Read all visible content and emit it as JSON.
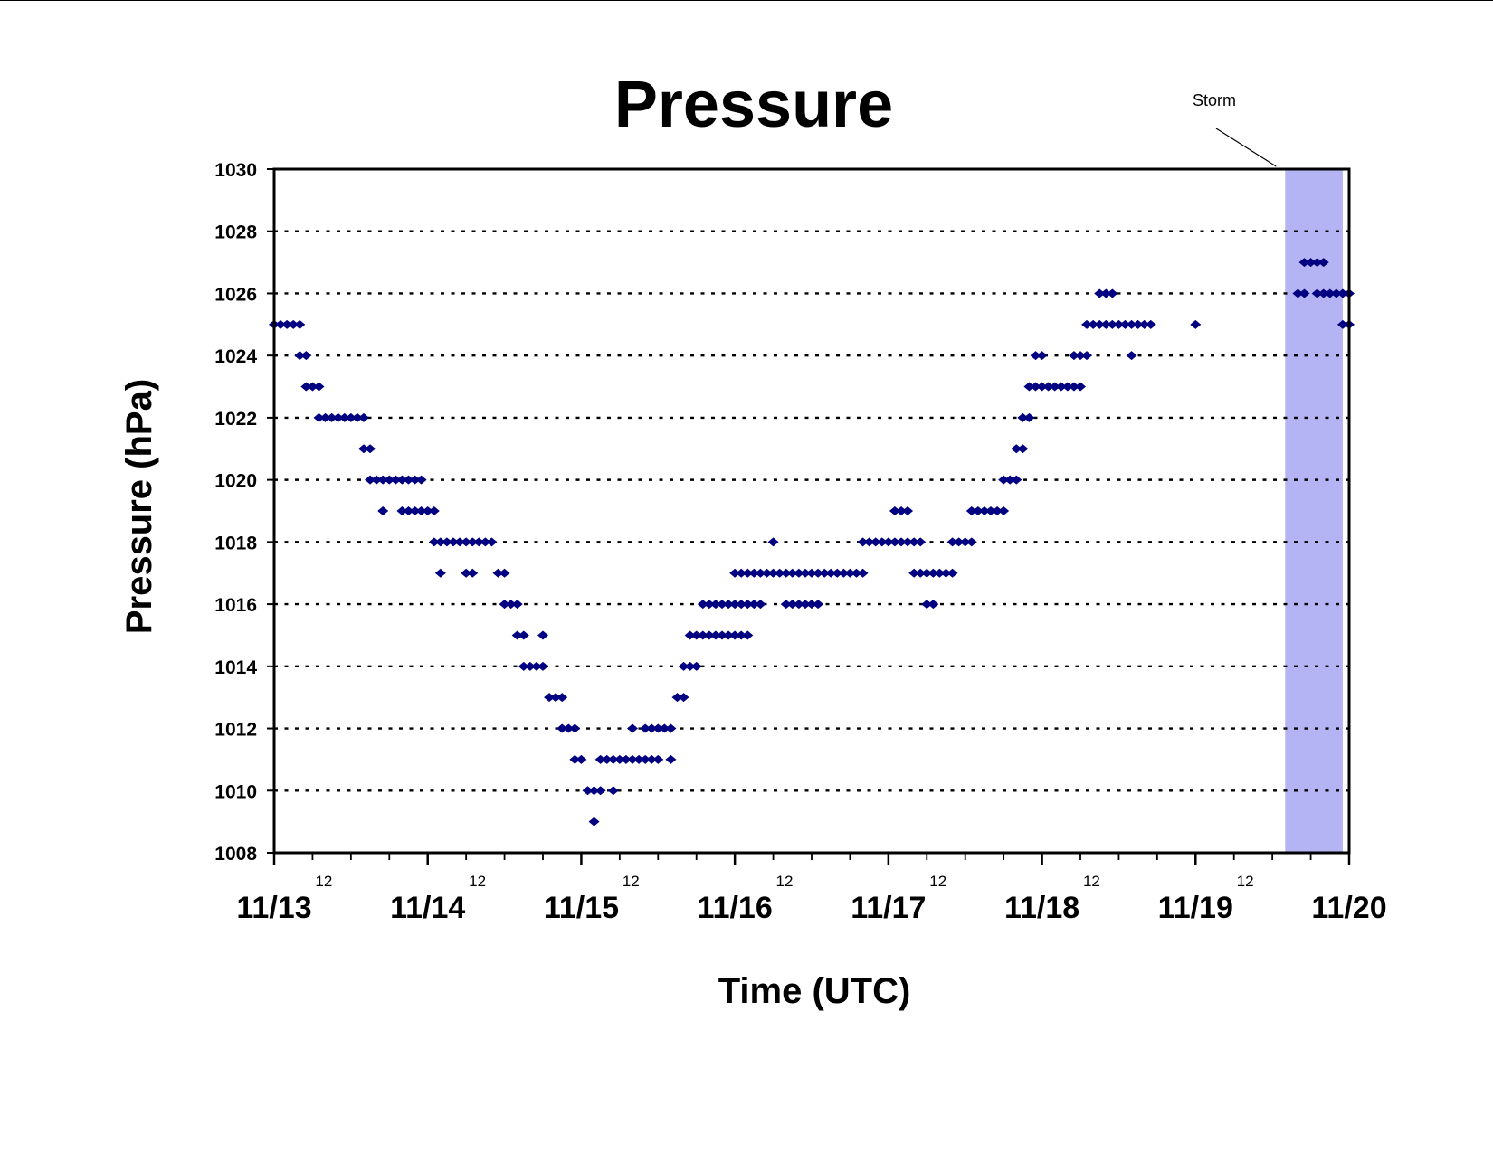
{
  "chart_data": {
    "type": "scatter",
    "title": "Pressure",
    "xlabel": "Time (UTC)",
    "ylabel": "Pressure (hPa)",
    "ylim": [
      1008,
      1030
    ],
    "yticks": [
      "1008",
      "1010",
      "1012",
      "1014",
      "1016",
      "1018",
      "1020",
      "1022",
      "1024",
      "1026",
      "1028",
      "1030"
    ],
    "xlim": [
      "11/13 00:00",
      "11/20 00:00"
    ],
    "x_day_labels": [
      "11/13",
      "11/14",
      "11/15",
      "11/16",
      "11/17",
      "11/18",
      "11/19",
      "11/20"
    ],
    "x_hour_labels": [
      "12",
      "12",
      "12",
      "12",
      "12",
      "12",
      "12"
    ],
    "grid": "horizontal dotted",
    "marker_color": "#000080",
    "annotation": {
      "label": "Storm",
      "color": "#b4b4f4",
      "start": "11/19 14:00",
      "end": "11/19 23:00"
    },
    "series": [
      {
        "points": [
          {
            "x": "11/13 00:00",
            "y": 1025
          },
          {
            "x": "11/13 01:00",
            "y": 1025
          },
          {
            "x": "11/13 02:00",
            "y": 1025
          },
          {
            "x": "11/13 03:00",
            "y": 1025
          },
          {
            "x": "11/13 04:00",
            "y": 1025
          },
          {
            "x": "11/13 04:00",
            "y": 1024
          },
          {
            "x": "11/13 05:00",
            "y": 1024
          },
          {
            "x": "11/13 05:00",
            "y": 1023
          },
          {
            "x": "11/13 06:00",
            "y": 1023
          },
          {
            "x": "11/13 07:00",
            "y": 1023
          },
          {
            "x": "11/13 07:00",
            "y": 1022
          },
          {
            "x": "11/13 08:00",
            "y": 1022
          },
          {
            "x": "11/13 09:00",
            "y": 1022
          },
          {
            "x": "11/13 10:00",
            "y": 1022
          },
          {
            "x": "11/13 11:00",
            "y": 1022
          },
          {
            "x": "11/13 12:00",
            "y": 1022
          },
          {
            "x": "11/13 13:00",
            "y": 1022
          },
          {
            "x": "11/13 14:00",
            "y": 1022
          },
          {
            "x": "11/13 14:00",
            "y": 1021
          },
          {
            "x": "11/13 15:00",
            "y": 1021
          },
          {
            "x": "11/13 15:00",
            "y": 1020
          },
          {
            "x": "11/13 16:00",
            "y": 1020
          },
          {
            "x": "11/13 17:00",
            "y": 1020
          },
          {
            "x": "11/13 18:00",
            "y": 1020
          },
          {
            "x": "11/13 19:00",
            "y": 1020
          },
          {
            "x": "11/13 20:00",
            "y": 1020
          },
          {
            "x": "11/13 21:00",
            "y": 1020
          },
          {
            "x": "11/13 22:00",
            "y": 1020
          },
          {
            "x": "11/13 23:00",
            "y": 1020
          },
          {
            "x": "11/13 17:00",
            "y": 1019
          },
          {
            "x": "11/13 20:00",
            "y": 1019
          },
          {
            "x": "11/13 21:00",
            "y": 1019
          },
          {
            "x": "11/13 22:00",
            "y": 1019
          },
          {
            "x": "11/13 23:00",
            "y": 1019
          },
          {
            "x": "11/14 00:00",
            "y": 1019
          },
          {
            "x": "11/14 01:00",
            "y": 1019
          },
          {
            "x": "11/14 01:00",
            "y": 1018
          },
          {
            "x": "11/14 02:00",
            "y": 1018
          },
          {
            "x": "11/14 03:00",
            "y": 1018
          },
          {
            "x": "11/14 04:00",
            "y": 1018
          },
          {
            "x": "11/14 05:00",
            "y": 1018
          },
          {
            "x": "11/14 06:00",
            "y": 1018
          },
          {
            "x": "11/14 07:00",
            "y": 1018
          },
          {
            "x": "11/14 08:00",
            "y": 1018
          },
          {
            "x": "11/14 09:00",
            "y": 1018
          },
          {
            "x": "11/14 10:00",
            "y": 1018
          },
          {
            "x": "11/14 02:00",
            "y": 1017
          },
          {
            "x": "11/14 06:00",
            "y": 1017
          },
          {
            "x": "11/14 07:00",
            "y": 1017
          },
          {
            "x": "11/14 11:00",
            "y": 1017
          },
          {
            "x": "11/14 12:00",
            "y": 1017
          },
          {
            "x": "11/14 12:00",
            "y": 1016
          },
          {
            "x": "11/14 13:00",
            "y": 1016
          },
          {
            "x": "11/14 14:00",
            "y": 1016
          },
          {
            "x": "11/14 14:00",
            "y": 1015
          },
          {
            "x": "11/14 15:00",
            "y": 1015
          },
          {
            "x": "11/14 18:00",
            "y": 1015
          },
          {
            "x": "11/14 15:00",
            "y": 1014
          },
          {
            "x": "11/14 16:00",
            "y": 1014
          },
          {
            "x": "11/14 17:00",
            "y": 1014
          },
          {
            "x": "11/14 18:00",
            "y": 1014
          },
          {
            "x": "11/14 19:00",
            "y": 1013
          },
          {
            "x": "11/14 20:00",
            "y": 1013
          },
          {
            "x": "11/14 21:00",
            "y": 1013
          },
          {
            "x": "11/14 21:00",
            "y": 1012
          },
          {
            "x": "11/14 22:00",
            "y": 1012
          },
          {
            "x": "11/14 23:00",
            "y": 1012
          },
          {
            "x": "11/14 23:00",
            "y": 1011
          },
          {
            "x": "11/15 00:00",
            "y": 1011
          },
          {
            "x": "11/15 01:00",
            "y": 1010
          },
          {
            "x": "11/15 02:00",
            "y": 1010
          },
          {
            "x": "11/15 03:00",
            "y": 1010
          },
          {
            "x": "11/15 02:00",
            "y": 1009
          },
          {
            "x": "11/15 03:00",
            "y": 1011
          },
          {
            "x": "11/15 04:00",
            "y": 1011
          },
          {
            "x": "11/15 05:00",
            "y": 1011
          },
          {
            "x": "11/15 06:00",
            "y": 1011
          },
          {
            "x": "11/15 07:00",
            "y": 1011
          },
          {
            "x": "11/15 08:00",
            "y": 1011
          },
          {
            "x": "11/15 09:00",
            "y": 1011
          },
          {
            "x": "11/15 10:00",
            "y": 1011
          },
          {
            "x": "11/15 11:00",
            "y": 1011
          },
          {
            "x": "11/15 12:00",
            "y": 1011
          },
          {
            "x": "11/15 05:00",
            "y": 1010
          },
          {
            "x": "11/15 08:00",
            "y": 1012
          },
          {
            "x": "11/15 10:00",
            "y": 1012
          },
          {
            "x": "11/15 11:00",
            "y": 1012
          },
          {
            "x": "11/15 12:00",
            "y": 1012
          },
          {
            "x": "11/15 13:00",
            "y": 1012
          },
          {
            "x": "11/15 14:00",
            "y": 1012
          },
          {
            "x": "11/15 14:00",
            "y": 1011
          },
          {
            "x": "11/15 15:00",
            "y": 1013
          },
          {
            "x": "11/15 16:00",
            "y": 1013
          },
          {
            "x": "11/15 16:00",
            "y": 1014
          },
          {
            "x": "11/15 17:00",
            "y": 1014
          },
          {
            "x": "11/15 18:00",
            "y": 1014
          },
          {
            "x": "11/15 17:00",
            "y": 1015
          },
          {
            "x": "11/15 18:00",
            "y": 1015
          },
          {
            "x": "11/15 19:00",
            "y": 1015
          },
          {
            "x": "11/15 20:00",
            "y": 1015
          },
          {
            "x": "11/15 21:00",
            "y": 1015
          },
          {
            "x": "11/15 22:00",
            "y": 1015
          },
          {
            "x": "11/15 23:00",
            "y": 1015
          },
          {
            "x": "11/16 00:00",
            "y": 1015
          },
          {
            "x": "11/16 01:00",
            "y": 1015
          },
          {
            "x": "11/16 02:00",
            "y": 1015
          },
          {
            "x": "11/15 19:00",
            "y": 1016
          },
          {
            "x": "11/15 20:00",
            "y": 1016
          },
          {
            "x": "11/15 21:00",
            "y": 1016
          },
          {
            "x": "11/15 22:00",
            "y": 1016
          },
          {
            "x": "11/15 23:00",
            "y": 1016
          },
          {
            "x": "11/16 00:00",
            "y": 1016
          },
          {
            "x": "11/16 01:00",
            "y": 1016
          },
          {
            "x": "11/16 02:00",
            "y": 1016
          },
          {
            "x": "11/16 03:00",
            "y": 1016
          },
          {
            "x": "11/16 04:00",
            "y": 1016
          },
          {
            "x": "11/16 00:00",
            "y": 1017
          },
          {
            "x": "11/16 01:00",
            "y": 1017
          },
          {
            "x": "11/16 02:00",
            "y": 1017
          },
          {
            "x": "11/16 03:00",
            "y": 1017
          },
          {
            "x": "11/16 04:00",
            "y": 1017
          },
          {
            "x": "11/16 05:00",
            "y": 1017
          },
          {
            "x": "11/16 06:00",
            "y": 1017
          },
          {
            "x": "11/16 07:00",
            "y": 1017
          },
          {
            "x": "11/16 08:00",
            "y": 1017
          },
          {
            "x": "11/16 09:00",
            "y": 1017
          },
          {
            "x": "11/16 10:00",
            "y": 1017
          },
          {
            "x": "11/16 06:00",
            "y": 1018
          },
          {
            "x": "11/16 08:00",
            "y": 1016
          },
          {
            "x": "11/16 09:00",
            "y": 1016
          },
          {
            "x": "11/16 10:00",
            "y": 1016
          },
          {
            "x": "11/16 11:00",
            "y": 1016
          },
          {
            "x": "11/16 12:00",
            "y": 1016
          },
          {
            "x": "11/16 13:00",
            "y": 1016
          },
          {
            "x": "11/16 11:00",
            "y": 1017
          },
          {
            "x": "11/16 12:00",
            "y": 1017
          },
          {
            "x": "11/16 13:00",
            "y": 1017
          },
          {
            "x": "11/16 14:00",
            "y": 1017
          },
          {
            "x": "11/16 15:00",
            "y": 1017
          },
          {
            "x": "11/16 16:00",
            "y": 1017
          },
          {
            "x": "11/16 17:00",
            "y": 1017
          },
          {
            "x": "11/16 18:00",
            "y": 1017
          },
          {
            "x": "11/16 19:00",
            "y": 1017
          },
          {
            "x": "11/16 20:00",
            "y": 1017
          },
          {
            "x": "11/16 20:00",
            "y": 1018
          },
          {
            "x": "11/16 21:00",
            "y": 1018
          },
          {
            "x": "11/16 22:00",
            "y": 1018
          },
          {
            "x": "11/16 23:00",
            "y": 1018
          },
          {
            "x": "11/17 00:00",
            "y": 1018
          },
          {
            "x": "11/17 01:00",
            "y": 1018
          },
          {
            "x": "11/17 02:00",
            "y": 1018
          },
          {
            "x": "11/17 01:00",
            "y": 1019
          },
          {
            "x": "11/17 02:00",
            "y": 1019
          },
          {
            "x": "11/17 03:00",
            "y": 1019
          },
          {
            "x": "11/17 03:00",
            "y": 1018
          },
          {
            "x": "11/17 04:00",
            "y": 1018
          },
          {
            "x": "11/17 05:00",
            "y": 1018
          },
          {
            "x": "11/17 04:00",
            "y": 1017
          },
          {
            "x": "11/17 05:00",
            "y": 1017
          },
          {
            "x": "11/17 06:00",
            "y": 1017
          },
          {
            "x": "11/17 07:00",
            "y": 1017
          },
          {
            "x": "11/17 08:00",
            "y": 1017
          },
          {
            "x": "11/17 09:00",
            "y": 1017
          },
          {
            "x": "11/17 10:00",
            "y": 1017
          },
          {
            "x": "11/17 06:00",
            "y": 1016
          },
          {
            "x": "11/17 07:00",
            "y": 1016
          },
          {
            "x": "11/17 10:00",
            "y": 1018
          },
          {
            "x": "11/17 11:00",
            "y": 1018
          },
          {
            "x": "11/17 12:00",
            "y": 1018
          },
          {
            "x": "11/17 13:00",
            "y": 1018
          },
          {
            "x": "11/17 13:00",
            "y": 1019
          },
          {
            "x": "11/17 14:00",
            "y": 1019
          },
          {
            "x": "11/17 15:00",
            "y": 1019
          },
          {
            "x": "11/17 16:00",
            "y": 1019
          },
          {
            "x": "11/17 17:00",
            "y": 1019
          },
          {
            "x": "11/17 18:00",
            "y": 1019
          },
          {
            "x": "11/17 18:00",
            "y": 1020
          },
          {
            "x": "11/17 19:00",
            "y": 1020
          },
          {
            "x": "11/17 20:00",
            "y": 1020
          },
          {
            "x": "11/17 20:00",
            "y": 1021
          },
          {
            "x": "11/17 21:00",
            "y": 1021
          },
          {
            "x": "11/17 21:00",
            "y": 1022
          },
          {
            "x": "11/17 22:00",
            "y": 1022
          },
          {
            "x": "11/17 22:00",
            "y": 1023
          },
          {
            "x": "11/17 23:00",
            "y": 1023
          },
          {
            "x": "11/18 00:00",
            "y": 1023
          },
          {
            "x": "11/18 01:00",
            "y": 1023
          },
          {
            "x": "11/18 02:00",
            "y": 1023
          },
          {
            "x": "11/18 03:00",
            "y": 1023
          },
          {
            "x": "11/18 04:00",
            "y": 1023
          },
          {
            "x": "11/18 05:00",
            "y": 1023
          },
          {
            "x": "11/18 06:00",
            "y": 1023
          },
          {
            "x": "11/17 23:00",
            "y": 1024
          },
          {
            "x": "11/18 00:00",
            "y": 1024
          },
          {
            "x": "11/18 05:00",
            "y": 1024
          },
          {
            "x": "11/18 06:00",
            "y": 1024
          },
          {
            "x": "11/18 07:00",
            "y": 1024
          },
          {
            "x": "11/18 07:00",
            "y": 1025
          },
          {
            "x": "11/18 08:00",
            "y": 1025
          },
          {
            "x": "11/18 09:00",
            "y": 1025
          },
          {
            "x": "11/18 10:00",
            "y": 1025
          },
          {
            "x": "11/18 11:00",
            "y": 1025
          },
          {
            "x": "11/18 12:00",
            "y": 1025
          },
          {
            "x": "11/18 13:00",
            "y": 1025
          },
          {
            "x": "11/18 14:00",
            "y": 1025
          },
          {
            "x": "11/18 15:00",
            "y": 1025
          },
          {
            "x": "11/18 16:00",
            "y": 1025
          },
          {
            "x": "11/18 17:00",
            "y": 1025
          },
          {
            "x": "11/18 09:00",
            "y": 1026
          },
          {
            "x": "11/18 10:00",
            "y": 1026
          },
          {
            "x": "11/18 11:00",
            "y": 1026
          },
          {
            "x": "11/18 14:00",
            "y": 1024
          },
          {
            "x": "11/19 00:00",
            "y": 1025
          },
          {
            "x": "11/19 16:00",
            "y": 1026
          },
          {
            "x": "11/19 17:00",
            "y": 1026
          },
          {
            "x": "11/19 20:00",
            "y": 1026
          },
          {
            "x": "11/19 21:00",
            "y": 1026
          },
          {
            "x": "11/19 22:00",
            "y": 1026
          },
          {
            "x": "11/19 23:00",
            "y": 1026
          },
          {
            "x": "11/20 00:00",
            "y": 1026
          },
          {
            "x": "11/19 17:00",
            "y": 1027
          },
          {
            "x": "11/19 18:00",
            "y": 1027
          },
          {
            "x": "11/19 19:00",
            "y": 1027
          },
          {
            "x": "11/19 20:00",
            "y": 1027
          },
          {
            "x": "11/19 19:00",
            "y": 1026
          },
          {
            "x": "11/19 23:00",
            "y": 1025
          },
          {
            "x": "11/20 00:00",
            "y": 1025
          }
        ]
      }
    ]
  }
}
